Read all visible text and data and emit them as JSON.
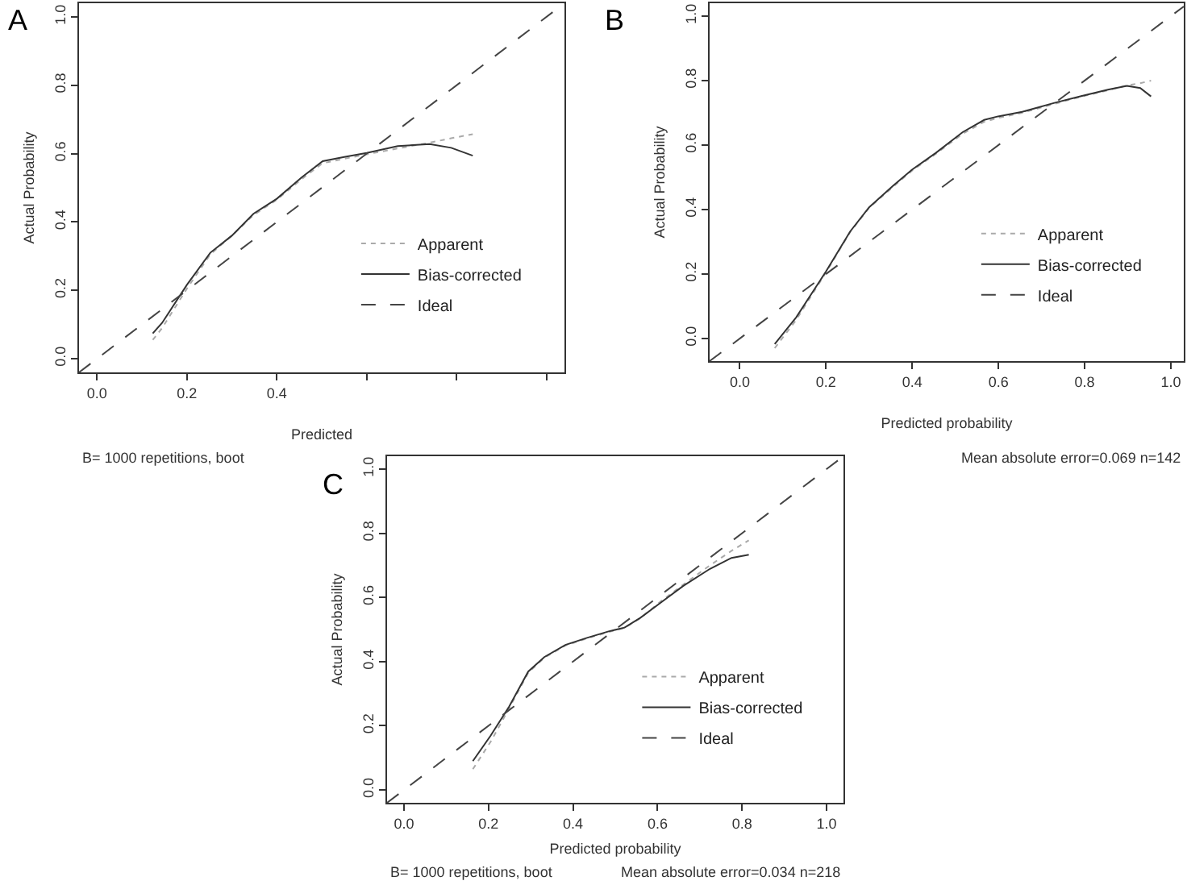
{
  "chart_data": [
    {
      "type": "line",
      "title": "A",
      "xlabel": "Predicted",
      "ylabel": "Actual Probability",
      "xlim": [
        -0.04,
        1.04
      ],
      "ylim": [
        -0.04,
        1.04
      ],
      "xticks": [
        {
          "value": 0,
          "label": "0.0"
        },
        {
          "value": 0.2,
          "label": "0.2"
        },
        {
          "value": 0.4,
          "label": "0.4"
        },
        {
          "value": 0.6,
          "label": null
        },
        {
          "value": 0.8,
          "label": null
        },
        {
          "value": 1,
          "label": null
        }
      ],
      "yticks": [
        {
          "value": 0,
          "label": "0.0"
        },
        {
          "value": 0.2,
          "label": "0.2"
        },
        {
          "value": 0.4,
          "label": "0.4"
        },
        {
          "value": 0.6,
          "label": "0.6"
        },
        {
          "value": 0.8,
          "label": "0.8"
        },
        {
          "value": 1,
          "label": "1.0"
        }
      ],
      "grid": false,
      "legend": "bottom right",
      "annotations": [
        "B= 1000 repetitions, boot"
      ],
      "series": [
        {
          "name": "Apparent",
          "color": "#aaaaaa",
          "line_style": "dotted",
          "x": [
            0.124,
            0.145,
            0.2,
            0.252,
            0.3,
            0.348,
            0.4,
            0.455,
            0.502,
            0.55,
            0.6,
            0.669,
            0.74,
            0.788,
            0.836
          ],
          "values": [
            0.055,
            0.09,
            0.205,
            0.305,
            0.36,
            0.42,
            0.465,
            0.525,
            0.572,
            0.585,
            0.598,
            0.615,
            0.632,
            0.645,
            0.657
          ]
        },
        {
          "name": "Bias-corrected",
          "color": "#333333",
          "line_style": "solid",
          "x": [
            0.124,
            0.145,
            0.2,
            0.252,
            0.3,
            0.348,
            0.4,
            0.455,
            0.502,
            0.55,
            0.6,
            0.669,
            0.74,
            0.788,
            0.836
          ],
          "values": [
            0.074,
            0.105,
            0.216,
            0.31,
            0.36,
            0.424,
            0.468,
            0.53,
            0.578,
            0.59,
            0.602,
            0.622,
            0.628,
            0.617,
            0.594
          ]
        },
        {
          "name": "Ideal",
          "color": "#444444",
          "line_style": "dashed",
          "x": [
            -0.04,
            1.04
          ],
          "values": [
            -0.04,
            1.04
          ]
        }
      ]
    },
    {
      "type": "line",
      "title": "B",
      "xlabel": "Predicted probability",
      "ylabel": "Actual Probability",
      "xlim": [
        -0.07,
        1.03
      ],
      "ylim": [
        -0.07,
        1.04
      ],
      "xticks": [
        {
          "value": 0,
          "label": "0.0"
        },
        {
          "value": 0.2,
          "label": "0.2"
        },
        {
          "value": 0.4,
          "label": "0.4"
        },
        {
          "value": 0.6,
          "label": "0.6"
        },
        {
          "value": 0.8,
          "label": "0.8"
        },
        {
          "value": 1,
          "label": "1.0"
        }
      ],
      "yticks": [
        {
          "value": 0,
          "label": "0.0"
        },
        {
          "value": 0.2,
          "label": "0.2"
        },
        {
          "value": 0.4,
          "label": "0.4"
        },
        {
          "value": 0.6,
          "label": "0.6"
        },
        {
          "value": 0.8,
          "label": "0.8"
        },
        {
          "value": 1,
          "label": "1.0"
        }
      ],
      "grid": false,
      "legend": "bottom right",
      "annotations": [
        "Mean absolute error=0.069 n=142"
      ],
      "series": [
        {
          "name": "Apparent",
          "color": "#aaaaaa",
          "line_style": "dotted",
          "x": [
            0.081,
            0.131,
            0.2,
            0.256,
            0.3,
            0.355,
            0.399,
            0.455,
            0.517,
            0.567,
            0.599,
            0.655,
            0.73,
            0.792,
            0.854,
            0.898,
            0.929,
            0.954
          ],
          "values": [
            -0.03,
            0.058,
            0.205,
            0.33,
            0.405,
            0.47,
            0.52,
            0.573,
            0.635,
            0.672,
            0.684,
            0.7,
            0.728,
            0.75,
            0.77,
            0.785,
            0.792,
            0.8
          ]
        },
        {
          "name": "Bias-corrected",
          "color": "#333333",
          "line_style": "solid",
          "x": [
            0.081,
            0.131,
            0.2,
            0.256,
            0.3,
            0.355,
            0.399,
            0.455,
            0.517,
            0.567,
            0.599,
            0.655,
            0.73,
            0.792,
            0.854,
            0.898,
            0.929,
            0.954
          ],
          "values": [
            -0.017,
            0.066,
            0.208,
            0.332,
            0.407,
            0.473,
            0.523,
            0.576,
            0.64,
            0.678,
            0.689,
            0.703,
            0.731,
            0.752,
            0.772,
            0.784,
            0.777,
            0.751
          ]
        },
        {
          "name": "Ideal",
          "color": "#444444",
          "line_style": "dashed",
          "x": [
            -0.07,
            1.03
          ],
          "values": [
            -0.07,
            1.03
          ]
        }
      ]
    },
    {
      "type": "line",
      "title": "C",
      "xlabel": "Predicted probability",
      "ylabel": "Actual Probability",
      "xlim": [
        -0.04,
        1.04
      ],
      "ylim": [
        -0.04,
        1.04
      ],
      "xticks": [
        {
          "value": 0,
          "label": "0.0"
        },
        {
          "value": 0.2,
          "label": "0.2"
        },
        {
          "value": 0.4,
          "label": "0.4"
        },
        {
          "value": 0.6,
          "label": "0.6"
        },
        {
          "value": 0.8,
          "label": "0.8"
        },
        {
          "value": 1,
          "label": "1.0"
        }
      ],
      "yticks": [
        {
          "value": 0,
          "label": "0.0"
        },
        {
          "value": 0.2,
          "label": "0.2"
        },
        {
          "value": 0.4,
          "label": "0.4"
        },
        {
          "value": 0.6,
          "label": "0.6"
        },
        {
          "value": 0.8,
          "label": "0.8"
        },
        {
          "value": 1,
          "label": "1.0"
        }
      ],
      "grid": false,
      "legend": "bottom right",
      "annotations": [
        "B= 1000 repetitions, boot",
        "Mean absolute error=0.034 n=218"
      ],
      "series": [
        {
          "name": "Apparent",
          "color": "#aaaaaa",
          "line_style": "dotted",
          "x": [
            0.163,
            0.205,
            0.249,
            0.294,
            0.332,
            0.382,
            0.433,
            0.484,
            0.522,
            0.559,
            0.61,
            0.661,
            0.724,
            0.775,
            0.816
          ],
          "values": [
            0.065,
            0.15,
            0.255,
            0.365,
            0.412,
            0.45,
            0.472,
            0.492,
            0.505,
            0.535,
            0.59,
            0.64,
            0.7,
            0.745,
            0.778
          ]
        },
        {
          "name": "Bias-corrected",
          "color": "#333333",
          "line_style": "solid",
          "x": [
            0.163,
            0.205,
            0.249,
            0.294,
            0.332,
            0.382,
            0.433,
            0.484,
            0.522,
            0.559,
            0.61,
            0.661,
            0.724,
            0.775,
            0.816
          ],
          "values": [
            0.09,
            0.169,
            0.26,
            0.369,
            0.414,
            0.452,
            0.474,
            0.494,
            0.506,
            0.536,
            0.586,
            0.636,
            0.689,
            0.723,
            0.733
          ]
        },
        {
          "name": "Ideal",
          "color": "#444444",
          "line_style": "dashed",
          "x": [
            -0.04,
            1.04
          ],
          "values": [
            -0.04,
            1.04
          ]
        }
      ]
    }
  ]
}
